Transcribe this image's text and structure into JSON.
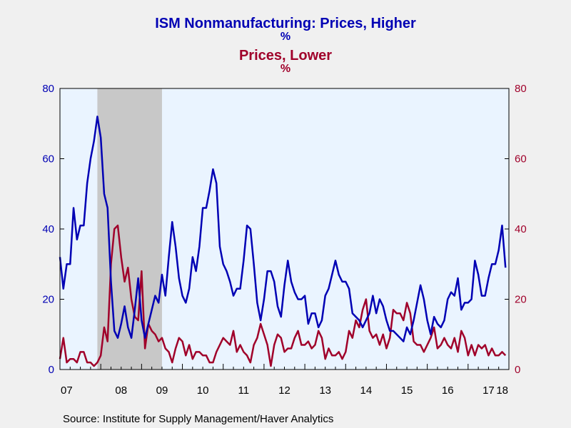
{
  "chart_data": {
    "type": "line",
    "title_line1": "ISM Nonmanufacturing: Prices, Higher",
    "unit_line1": "%",
    "title_line2": "Prices, Lower",
    "unit_line2": "%",
    "source": "Source:  Institute for Supply Management/Haver Analytics",
    "colors": {
      "higher": "#0000b4",
      "lower": "#a0002a",
      "plot_bg": "#eaf4ff",
      "page_bg": "#f0f0f0",
      "recession": "#c8c8c8"
    },
    "x_axis": {
      "start_year": 2007,
      "end_year": 2018,
      "tick_labels": [
        "07",
        "08",
        "09",
        "10",
        "11",
        "12",
        "13",
        "14",
        "15",
        "16",
        "17",
        "18"
      ]
    },
    "y_left": {
      "ylim": [
        0,
        80
      ],
      "ticks": [
        "0",
        "20",
        "40",
        "60",
        "80"
      ]
    },
    "y_right": {
      "ylim": [
        0,
        80
      ],
      "ticks": [
        "0",
        "20",
        "40",
        "60",
        "80"
      ]
    },
    "recession": {
      "start": "2007-12",
      "end": "2009-06"
    },
    "series": [
      {
        "name": "Prices, Higher",
        "color": "#0000b4",
        "axis": "left",
        "start": "2007-01",
        "values": [
          32,
          23,
          30,
          30,
          46,
          37,
          41,
          41,
          53,
          60,
          65,
          72,
          66,
          50,
          46,
          25,
          11,
          9,
          13,
          18,
          12,
          9,
          17,
          26,
          14,
          9,
          13,
          17,
          21,
          19,
          27,
          21,
          32,
          42,
          35,
          26,
          21,
          19,
          23,
          32,
          28,
          35,
          46,
          46,
          51,
          57,
          53,
          35,
          30,
          28,
          25,
          21,
          23,
          23,
          31,
          41,
          40,
          30,
          19,
          14,
          20,
          28,
          28,
          25,
          18,
          15,
          24,
          31,
          25,
          22,
          20,
          20,
          21,
          13,
          16,
          16,
          12,
          14,
          21,
          23,
          27,
          31,
          27,
          25,
          25,
          23,
          16,
          15,
          14,
          12,
          14,
          16,
          21,
          16,
          20,
          18,
          14,
          11,
          11,
          10,
          9,
          8,
          12,
          10,
          14,
          19,
          24,
          20,
          14,
          10,
          15,
          13,
          12,
          14,
          20,
          22,
          21,
          26,
          17,
          19,
          19,
          20,
          31,
          27,
          21,
          21,
          26,
          30,
          30,
          34,
          41,
          29
        ]
      },
      {
        "name": "Prices, Lower",
        "color": "#a0002a",
        "axis": "right",
        "start": "2007-01",
        "values": [
          3,
          9,
          2,
          3,
          3,
          2,
          5,
          5,
          2,
          2,
          1,
          2,
          4,
          12,
          8,
          30,
          40,
          41,
          32,
          25,
          29,
          20,
          15,
          14,
          28,
          6,
          13,
          11,
          10,
          8,
          9,
          6,
          5,
          2,
          6,
          9,
          8,
          4,
          7,
          3,
          5,
          5,
          4,
          4,
          2,
          2,
          5,
          7,
          9,
          8,
          7,
          11,
          5,
          7,
          5,
          4,
          2,
          7,
          9,
          13,
          10,
          7,
          1,
          7,
          10,
          9,
          5,
          6,
          6,
          9,
          11,
          7,
          7,
          8,
          6,
          7,
          11,
          9,
          3,
          6,
          4,
          4,
          5,
          3,
          5,
          11,
          9,
          14,
          12,
          17,
          20,
          11,
          9,
          10,
          7,
          10,
          6,
          9,
          17,
          16,
          16,
          14,
          19,
          16,
          8,
          7,
          7,
          5,
          7,
          9,
          12,
          6,
          7,
          9,
          7,
          6,
          9,
          5,
          11,
          9,
          4,
          7,
          4,
          7,
          6,
          7,
          4,
          6,
          4,
          4,
          5,
          4
        ]
      }
    ]
  }
}
